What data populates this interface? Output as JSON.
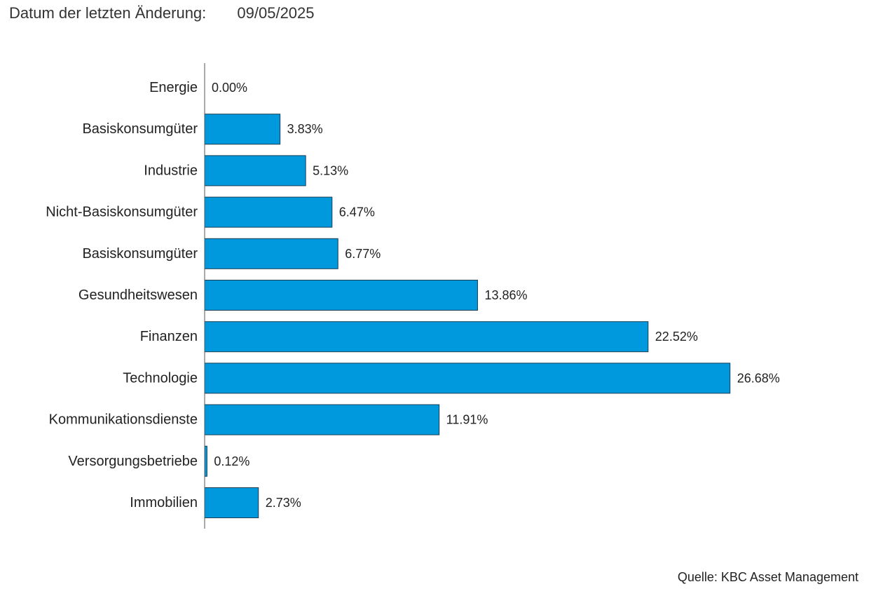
{
  "header": {
    "date_label": "Datum der letzten Änderung:",
    "date_value": "09/05/2025"
  },
  "chart_data": {
    "type": "bar",
    "orientation": "horizontal",
    "categories": [
      "Energie",
      "Basiskonsumgüter",
      "Industrie",
      "Nicht-Basiskonsumgüter",
      "Basiskonsumgüter",
      "Gesundheitswesen",
      "Finanzen",
      "Technologie",
      "Kommunikationsdienste",
      "Versorgungsbetriebe",
      "Immobilien"
    ],
    "values": [
      0.0,
      3.83,
      5.13,
      6.47,
      6.77,
      13.86,
      22.52,
      26.68,
      11.91,
      0.12,
      2.73
    ],
    "value_labels": [
      "0.00%",
      "3.83%",
      "5.13%",
      "6.47%",
      "6.77%",
      "13.86%",
      "22.52%",
      "26.68%",
      "11.91%",
      "0.12%",
      "2.73%"
    ],
    "unit": "%",
    "bar_color": "#0099dd",
    "title": "",
    "xlabel": "",
    "ylabel": "",
    "grid": false,
    "legend": "none"
  },
  "footer": {
    "source": "Quelle: KBC Asset Management"
  }
}
